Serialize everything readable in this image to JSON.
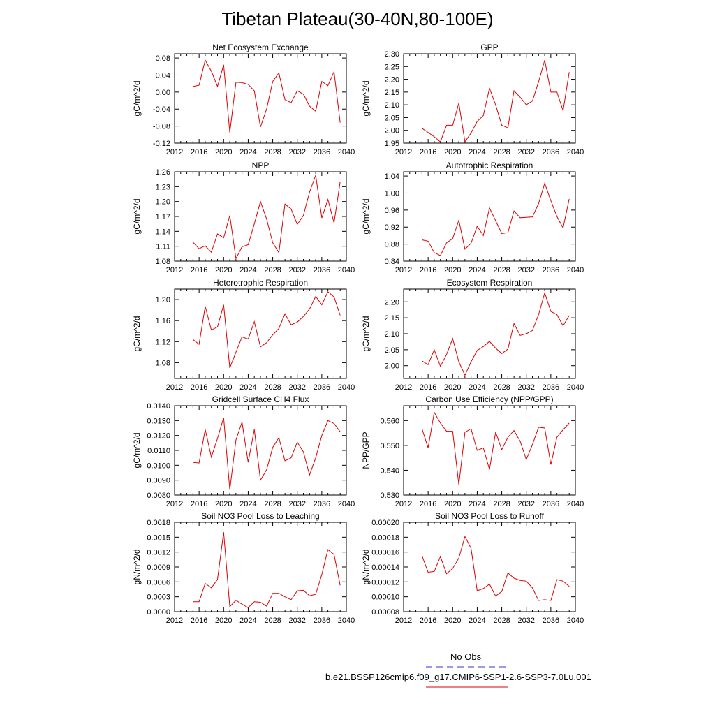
{
  "title": "Tibetan Plateau(30-40N,80-100E)",
  "legend": [
    {
      "label": "No Obs",
      "color": "#3333cc",
      "dash": "dashed"
    },
    {
      "label": "b.e21.BSSP126cmip6.f09_g17.CMIP6-SSP1-2.6-SSP3-7.0Lu.001",
      "color": "#dd0000",
      "dash": "solid"
    }
  ],
  "chart_data": [
    {
      "type": "line",
      "title": "Net Ecosystem Exchange",
      "ylabel": "gC/m^2/d",
      "xlim": [
        2012,
        2040
      ],
      "ylim": [
        -0.12,
        0.09
      ],
      "xticks": [
        "2012",
        "2016",
        "2020",
        "2024",
        "2028",
        "2032",
        "2036",
        "2040"
      ],
      "yticks": [
        "-0.12",
        "-0.08",
        "-0.04",
        "0.00",
        "0.04",
        "0.08"
      ],
      "x": [
        2015,
        2016,
        2017,
        2018,
        2019,
        2020,
        2021,
        2022,
        2023,
        2024,
        2025,
        2026,
        2027,
        2028,
        2029,
        2030,
        2031,
        2032,
        2033,
        2034,
        2035,
        2036,
        2037,
        2038,
        2039
      ],
      "series": [
        {
          "color": "#dd0000",
          "values": [
            0.013,
            0.016,
            0.075,
            0.049,
            0.013,
            0.064,
            -0.095,
            0.023,
            0.022,
            0.018,
            0.003,
            -0.082,
            -0.04,
            0.025,
            0.045,
            -0.018,
            -0.025,
            0.003,
            -0.005,
            -0.033,
            -0.045,
            0.025,
            0.015,
            0.048,
            -0.072
          ]
        }
      ]
    },
    {
      "type": "line",
      "title": "GPP",
      "ylabel": "gC/m^2/d",
      "xlim": [
        2012,
        2040
      ],
      "ylim": [
        1.95,
        2.3
      ],
      "xticks": [
        "2012",
        "2016",
        "2020",
        "2024",
        "2028",
        "2032",
        "2036",
        "2040"
      ],
      "yticks": [
        "1.95",
        "2.00",
        "2.05",
        "2.10",
        "2.15",
        "2.20",
        "2.25",
        "2.30"
      ],
      "x": [
        2015,
        2016,
        2017,
        2018,
        2019,
        2020,
        2021,
        2022,
        2023,
        2024,
        2025,
        2026,
        2027,
        2028,
        2029,
        2030,
        2031,
        2032,
        2033,
        2034,
        2035,
        2036,
        2037,
        2038,
        2039
      ],
      "series": [
        {
          "color": "#dd0000",
          "values": [
            2.008,
            1.992,
            1.975,
            1.955,
            2.02,
            2.02,
            2.107,
            1.955,
            1.99,
            2.035,
            2.058,
            2.165,
            2.1,
            2.02,
            2.01,
            2.155,
            2.13,
            2.1,
            2.115,
            2.19,
            2.275,
            2.15,
            2.15,
            2.077,
            2.228
          ]
        }
      ]
    },
    {
      "type": "line",
      "title": "NPP",
      "ylabel": "gC/m^2/d",
      "xlim": [
        2012,
        2040
      ],
      "ylim": [
        1.08,
        1.26
      ],
      "xticks": [
        "2012",
        "2016",
        "2020",
        "2024",
        "2028",
        "2032",
        "2036",
        "2040"
      ],
      "yticks": [
        "1.08",
        "1.11",
        "1.14",
        "1.17",
        "1.20",
        "1.23",
        "1.26"
      ],
      "x": [
        2015,
        2016,
        2017,
        2018,
        2019,
        2020,
        2021,
        2022,
        2023,
        2024,
        2025,
        2026,
        2027,
        2028,
        2029,
        2030,
        2031,
        2032,
        2033,
        2034,
        2035,
        2036,
        2037,
        2038,
        2039
      ],
      "series": [
        {
          "color": "#dd0000",
          "values": [
            1.118,
            1.105,
            1.111,
            1.098,
            1.135,
            1.127,
            1.172,
            1.085,
            1.109,
            1.113,
            1.155,
            1.2,
            1.165,
            1.117,
            1.097,
            1.195,
            1.185,
            1.154,
            1.172,
            1.219,
            1.253,
            1.167,
            1.204,
            1.157,
            1.24
          ]
        }
      ]
    },
    {
      "type": "line",
      "title": "Autotrophic Respiration",
      "ylabel": "gC/m^2/d",
      "xlim": [
        2012,
        2040
      ],
      "ylim": [
        0.84,
        1.05
      ],
      "xticks": [
        "2012",
        "2016",
        "2020",
        "2024",
        "2028",
        "2032",
        "2036",
        "2040"
      ],
      "yticks": [
        "0.84",
        "0.88",
        "0.92",
        "0.96",
        "1.00",
        "1.04"
      ],
      "x": [
        2015,
        2016,
        2017,
        2018,
        2019,
        2020,
        2021,
        2022,
        2023,
        2024,
        2025,
        2026,
        2027,
        2028,
        2029,
        2030,
        2031,
        2032,
        2033,
        2034,
        2035,
        2036,
        2037,
        2038,
        2039
      ],
      "series": [
        {
          "color": "#dd0000",
          "values": [
            0.89,
            0.887,
            0.86,
            0.853,
            0.883,
            0.893,
            0.936,
            0.868,
            0.882,
            0.922,
            0.9,
            0.965,
            0.935,
            0.905,
            0.907,
            0.958,
            0.942,
            0.943,
            0.944,
            0.975,
            1.023,
            0.982,
            0.945,
            0.918,
            0.986
          ]
        }
      ]
    },
    {
      "type": "line",
      "title": "Heterotrophic Respiration",
      "ylabel": "gC/m^2/d",
      "xlim": [
        2012,
        2040
      ],
      "ylim": [
        1.05,
        1.22
      ],
      "xticks": [
        "2012",
        "2016",
        "2020",
        "2024",
        "2028",
        "2032",
        "2036",
        "2040"
      ],
      "yticks": [
        "1.08",
        "1.12",
        "1.16",
        "1.20"
      ],
      "x": [
        2015,
        2016,
        2017,
        2018,
        2019,
        2020,
        2021,
        2022,
        2023,
        2024,
        2025,
        2026,
        2027,
        2028,
        2029,
        2030,
        2031,
        2032,
        2033,
        2034,
        2035,
        2036,
        2037,
        2038,
        2039
      ],
      "series": [
        {
          "color": "#dd0000",
          "values": [
            1.124,
            1.115,
            1.187,
            1.142,
            1.148,
            1.19,
            1.07,
            1.1,
            1.129,
            1.125,
            1.158,
            1.11,
            1.118,
            1.133,
            1.145,
            1.173,
            1.152,
            1.157,
            1.168,
            1.182,
            1.206,
            1.19,
            1.215,
            1.205,
            1.17
          ]
        }
      ]
    },
    {
      "type": "line",
      "title": "Ecosystem Respiration",
      "ylabel": "gC/m^2/d",
      "xlim": [
        2012,
        2040
      ],
      "ylim": [
        1.96,
        2.24
      ],
      "xticks": [
        "2012",
        "2016",
        "2020",
        "2024",
        "2028",
        "2032",
        "2036",
        "2040"
      ],
      "yticks": [
        "2.00",
        "2.05",
        "2.10",
        "2.15",
        "2.20"
      ],
      "x": [
        2015,
        2016,
        2017,
        2018,
        2019,
        2020,
        2021,
        2022,
        2023,
        2024,
        2025,
        2026,
        2027,
        2028,
        2029,
        2030,
        2031,
        2032,
        2033,
        2034,
        2035,
        2036,
        2037,
        2038,
        2039
      ],
      "series": [
        {
          "color": "#dd0000",
          "values": [
            2.015,
            2.003,
            2.05,
            1.998,
            2.035,
            2.085,
            2.012,
            1.97,
            2.012,
            2.048,
            2.06,
            2.076,
            2.055,
            2.038,
            2.052,
            2.132,
            2.095,
            2.1,
            2.11,
            2.16,
            2.228,
            2.17,
            2.16,
            2.125,
            2.157
          ]
        }
      ]
    },
    {
      "type": "line",
      "title": "Gridcell Surface CH4 Flux",
      "ylabel": "gC/m^2/d",
      "xlim": [
        2012,
        2040
      ],
      "ylim": [
        0.008,
        0.014
      ],
      "xticks": [
        "2012",
        "2016",
        "2020",
        "2024",
        "2028",
        "2032",
        "2036",
        "2040"
      ],
      "yticks": [
        "0.0080",
        "0.0090",
        "0.0100",
        "0.0110",
        "0.0120",
        "0.0130",
        "0.0140"
      ],
      "x": [
        2015,
        2016,
        2017,
        2018,
        2019,
        2020,
        2021,
        2022,
        2023,
        2024,
        2025,
        2026,
        2027,
        2028,
        2029,
        2030,
        2031,
        2032,
        2033,
        2034,
        2035,
        2036,
        2037,
        2038,
        2039
      ],
      "series": [
        {
          "color": "#dd0000",
          "values": [
            0.0102,
            0.01015,
            0.0124,
            0.01055,
            0.0118,
            0.0132,
            0.00835,
            0.0117,
            0.0129,
            0.0102,
            0.0124,
            0.009,
            0.0097,
            0.0112,
            0.01185,
            0.0103,
            0.0105,
            0.01155,
            0.0109,
            0.00935,
            0.0105,
            0.012,
            0.013,
            0.0128,
            0.01225
          ]
        }
      ]
    },
    {
      "type": "line",
      "title": "Carbon Use Efficiency (NPP/GPP)",
      "ylabel": "NPP/GPP",
      "xlim": [
        2012,
        2040
      ],
      "ylim": [
        0.53,
        0.566
      ],
      "xticks": [
        "2012",
        "2016",
        "2020",
        "2024",
        "2028",
        "2032",
        "2036",
        "2040"
      ],
      "yticks": [
        "0.530",
        "0.540",
        "0.550",
        "0.560"
      ],
      "x": [
        2015,
        2016,
        2017,
        2018,
        2019,
        2020,
        2021,
        2022,
        2023,
        2024,
        2025,
        2026,
        2027,
        2028,
        2029,
        2030,
        2031,
        2032,
        2033,
        2034,
        2035,
        2036,
        2037,
        2038,
        2039
      ],
      "series": [
        {
          "color": "#dd0000",
          "values": [
            0.5567,
            0.549,
            0.5633,
            0.559,
            0.5557,
            0.5557,
            0.5342,
            0.5553,
            0.5567,
            0.548,
            0.549,
            0.5403,
            0.5553,
            0.5483,
            0.5533,
            0.556,
            0.5517,
            0.5443,
            0.5503,
            0.5573,
            0.557,
            0.5423,
            0.5533,
            0.5563,
            0.559
          ]
        }
      ]
    },
    {
      "type": "line",
      "title": "Soil NO3 Pool Loss to Leaching",
      "ylabel": "gN/m^2/d",
      "xlim": [
        2012,
        2040
      ],
      "ylim": [
        0,
        0.0018
      ],
      "xticks": [
        "2012",
        "2016",
        "2020",
        "2024",
        "2028",
        "2032",
        "2036",
        "2040"
      ],
      "yticks": [
        "0.0000",
        "0.0003",
        "0.0006",
        "0.0009",
        "0.0012",
        "0.0015",
        "0.0018"
      ],
      "x": [
        2015,
        2016,
        2017,
        2018,
        2019,
        2020,
        2021,
        2022,
        2023,
        2024,
        2025,
        2026,
        2027,
        2028,
        2029,
        2030,
        2031,
        2032,
        2033,
        2034,
        2035,
        2036,
        2037,
        2038,
        2039
      ],
      "series": [
        {
          "color": "#dd0000",
          "values": [
            0.0002,
            0.0002,
            0.00057,
            0.00048,
            0.00065,
            0.0016,
            0.0001,
            0.00023,
            0.00015,
            8e-05,
            0.0002,
            0.00019,
            0.00011,
            0.00037,
            0.00037,
            0.0003,
            0.00024,
            0.00042,
            0.00043,
            0.00032,
            0.00035,
            0.00075,
            0.00125,
            0.00115,
            0.00053
          ]
        }
      ]
    },
    {
      "type": "line",
      "title": "Soil NO3 Pool Loss to Runoff",
      "ylabel": "gN/m^2/d",
      "xlim": [
        2012,
        2040
      ],
      "ylim": [
        8e-05,
        0.0002
      ],
      "xticks": [
        "2012",
        "2016",
        "2020",
        "2024",
        "2028",
        "2032",
        "2036",
        "2040"
      ],
      "yticks": [
        "0.00008",
        "0.00010",
        "0.00012",
        "0.00014",
        "0.00016",
        "0.00018",
        "0.00020"
      ],
      "x": [
        2015,
        2016,
        2017,
        2018,
        2019,
        2020,
        2021,
        2022,
        2023,
        2024,
        2025,
        2026,
        2027,
        2028,
        2029,
        2030,
        2031,
        2032,
        2033,
        2034,
        2035,
        2036,
        2037,
        2038,
        2039
      ],
      "series": [
        {
          "color": "#dd0000",
          "values": [
            0.000155,
            0.000133,
            0.000134,
            0.000154,
            0.000131,
            0.000138,
            0.000152,
            0.000181,
            0.000165,
            0.000108,
            0.000111,
            0.000117,
            0.000101,
            0.000107,
            0.000132,
            0.000125,
            0.000122,
            0.000121,
            0.000112,
            9.5e-05,
            9.6e-05,
            9.5e-05,
            0.000123,
            0.000121,
            0.000114
          ]
        }
      ]
    }
  ]
}
